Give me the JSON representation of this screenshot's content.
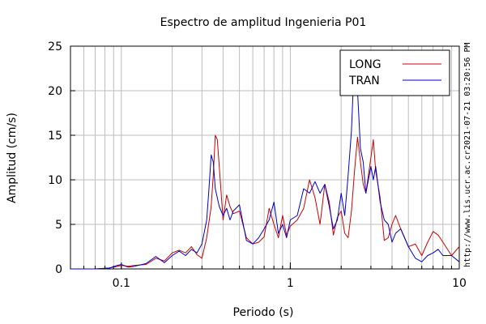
{
  "chart_data": {
    "type": "line",
    "title": "Espectro de amplitud Ingenieria P01",
    "xlabel": "Periodo (s)",
    "ylabel": "Amplitud (cm/s)",
    "x_scale": "log",
    "xlim": [
      0.05,
      10
    ],
    "ylim": [
      0,
      25
    ],
    "x_ticks": [
      0.1,
      1,
      10
    ],
    "x_tick_labels": [
      "0.1",
      "1",
      "10"
    ],
    "y_ticks": [
      0,
      5,
      10,
      15,
      20,
      25
    ],
    "y_tick_labels": [
      "0",
      "5",
      "10",
      "15",
      "20",
      "25"
    ],
    "grid": true,
    "legend_position": "top-right",
    "side_text_timestamp": "2021-07-21 03:20:56 PM",
    "side_text_url": "http://www.lis.ucr.ac.cr",
    "series": [
      {
        "name": "LONG",
        "color": "#cc0000",
        "x": [
          0.05,
          0.07,
          0.085,
          0.095,
          0.1,
          0.11,
          0.12,
          0.14,
          0.16,
          0.18,
          0.2,
          0.22,
          0.24,
          0.26,
          0.28,
          0.3,
          0.32,
          0.34,
          0.35,
          0.36,
          0.37,
          0.38,
          0.4,
          0.42,
          0.44,
          0.46,
          0.5,
          0.55,
          0.6,
          0.65,
          0.7,
          0.75,
          0.8,
          0.85,
          0.9,
          0.95,
          1.0,
          1.1,
          1.2,
          1.3,
          1.4,
          1.5,
          1.6,
          1.7,
          1.8,
          1.9,
          2.0,
          2.1,
          2.2,
          2.3,
          2.4,
          2.5,
          2.6,
          2.7,
          2.8,
          3.0,
          3.1,
          3.2,
          3.4,
          3.6,
          3.8,
          4.0,
          4.2,
          4.5,
          5.0,
          5.5,
          6.0,
          6.5,
          7.0,
          7.5,
          8.0,
          9.0,
          10.0
        ],
        "y": [
          0.0,
          0.0,
          0.1,
          0.3,
          0.4,
          0.3,
          0.4,
          0.5,
          1.2,
          0.9,
          1.8,
          2.1,
          1.8,
          2.5,
          1.6,
          1.2,
          3.5,
          7.0,
          10.5,
          15.0,
          14.5,
          11.5,
          5.5,
          8.3,
          7.0,
          6.2,
          6.5,
          3.5,
          2.8,
          3.0,
          3.6,
          6.8,
          5.0,
          3.5,
          6.0,
          3.8,
          4.8,
          5.5,
          6.8,
          10.0,
          8.0,
          5.0,
          9.5,
          7.5,
          3.8,
          5.8,
          6.5,
          4.0,
          3.5,
          6.5,
          11.0,
          14.8,
          12.0,
          9.5,
          8.5,
          12.5,
          14.5,
          11.0,
          8.0,
          3.2,
          3.5,
          5.0,
          6.0,
          4.5,
          2.5,
          2.8,
          1.5,
          3.0,
          4.2,
          3.8,
          3.0,
          1.5,
          2.5
        ]
      },
      {
        "name": "TRAN",
        "color": "#0000cc",
        "x": [
          0.05,
          0.07,
          0.085,
          0.095,
          0.1,
          0.11,
          0.12,
          0.14,
          0.16,
          0.18,
          0.2,
          0.22,
          0.24,
          0.26,
          0.28,
          0.3,
          0.32,
          0.33,
          0.34,
          0.35,
          0.36,
          0.38,
          0.4,
          0.42,
          0.44,
          0.46,
          0.5,
          0.55,
          0.6,
          0.65,
          0.7,
          0.75,
          0.8,
          0.85,
          0.9,
          0.95,
          1.0,
          1.1,
          1.2,
          1.3,
          1.4,
          1.5,
          1.6,
          1.7,
          1.8,
          1.9,
          2.0,
          2.1,
          2.2,
          2.3,
          2.4,
          2.5,
          2.6,
          2.7,
          2.8,
          3.0,
          3.1,
          3.2,
          3.4,
          3.6,
          3.8,
          4.0,
          4.2,
          4.5,
          5.0,
          5.5,
          6.0,
          6.5,
          7.0,
          7.5,
          8.0,
          9.0,
          10.0
        ],
        "y": [
          0.0,
          0.0,
          0.1,
          0.4,
          0.5,
          0.2,
          0.3,
          0.6,
          1.4,
          0.7,
          1.5,
          2.0,
          1.5,
          2.2,
          1.8,
          2.8,
          5.5,
          9.0,
          12.8,
          12.0,
          9.0,
          7.0,
          6.0,
          6.8,
          5.5,
          6.5,
          7.2,
          3.2,
          2.8,
          3.5,
          4.5,
          5.5,
          7.5,
          4.0,
          5.0,
          3.5,
          5.5,
          6.0,
          9.0,
          8.5,
          9.8,
          8.5,
          9.5,
          7.0,
          4.5,
          5.5,
          8.5,
          6.0,
          10.5,
          15.5,
          24.0,
          20.0,
          13.5,
          12.0,
          8.5,
          11.5,
          10.0,
          11.5,
          7.5,
          5.5,
          5.0,
          3.0,
          4.0,
          4.5,
          2.5,
          1.2,
          0.8,
          1.5,
          1.8,
          2.2,
          1.5,
          1.5,
          0.8
        ]
      }
    ]
  }
}
